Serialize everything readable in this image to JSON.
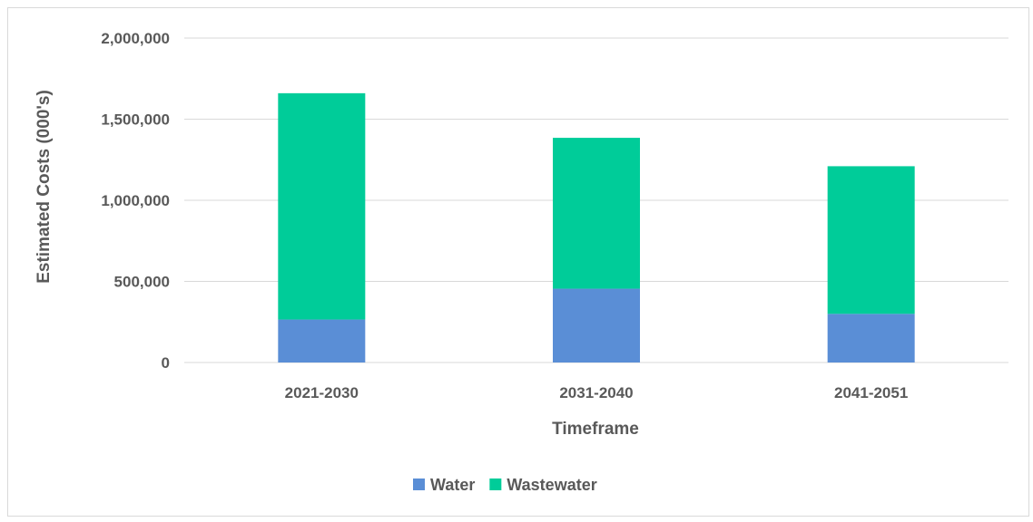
{
  "chart_data": {
    "type": "bar",
    "stacked": true,
    "xlabel": "Timeframe",
    "ylabel": "Estimated Costs (000's)",
    "categories": [
      "2021-2030",
      "2031-2040",
      "2041-2051"
    ],
    "ylim": [
      0,
      2000000
    ],
    "yticks": [
      0,
      500000,
      1000000,
      1500000,
      2000000
    ],
    "ytick_labels": [
      "0",
      "500,000",
      "1,000,000",
      "1,500,000",
      "2,000,000"
    ],
    "grid": true,
    "legend_position": "bottom",
    "series": [
      {
        "name": "Water",
        "color": "#5a8ed6",
        "values": [
          265000,
          455000,
          300000
        ]
      },
      {
        "name": "Wastewater",
        "color": "#00cc99",
        "values": [
          1395000,
          930000,
          910000
        ]
      }
    ]
  }
}
